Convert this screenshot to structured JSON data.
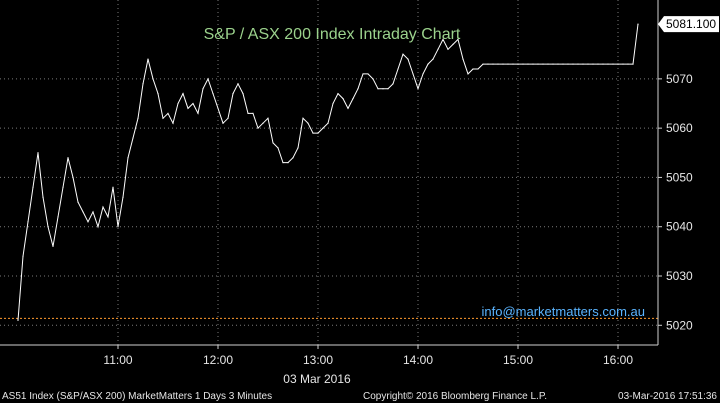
{
  "chart_data": {
    "type": "line",
    "title": "S&P / ASX 200 Index Intraday Chart",
    "date_label": "03 Mar 2016",
    "x_tick_labels": [
      "11:00",
      "12:00",
      "13:00",
      "14:00",
      "15:00",
      "16:00"
    ],
    "y_tick_values": [
      5020,
      5030,
      5040,
      5050,
      5060,
      5070
    ],
    "ylim": [
      5016,
      5086
    ],
    "last_value": 5081.1,
    "last_value_label": "5081.100",
    "reference_line_value": 5021.4,
    "series": [
      {
        "x": [
          "10:00",
          "10:03",
          "10:06",
          "10:09",
          "10:12",
          "10:15",
          "10:18",
          "10:21",
          "10:24",
          "10:27",
          "10:30",
          "10:33",
          "10:36",
          "10:39",
          "10:42",
          "10:45",
          "10:48",
          "10:51",
          "10:54",
          "10:57",
          "11:00",
          "11:03",
          "11:06",
          "11:09",
          "11:12",
          "11:15",
          "11:18",
          "11:21",
          "11:24",
          "11:27",
          "11:30",
          "11:33",
          "11:36",
          "11:39",
          "11:42",
          "11:45",
          "11:48",
          "11:51",
          "11:54",
          "11:57",
          "12:00",
          "12:03",
          "12:06",
          "12:09",
          "12:12",
          "12:15",
          "12:18",
          "12:21",
          "12:24",
          "12:27",
          "12:30",
          "12:33",
          "12:36",
          "12:39",
          "12:42",
          "12:45",
          "12:48",
          "12:51",
          "12:54",
          "12:57",
          "13:00",
          "13:03",
          "13:06",
          "13:09",
          "13:12",
          "13:15",
          "13:18",
          "13:21",
          "13:24",
          "13:27",
          "13:30",
          "13:33",
          "13:36",
          "13:39",
          "13:42",
          "13:45",
          "13:48",
          "13:51",
          "13:54",
          "13:57",
          "14:00",
          "14:03",
          "14:06",
          "14:09",
          "14:12",
          "14:15",
          "14:18",
          "14:21",
          "14:24",
          "14:27",
          "14:30",
          "14:33",
          "14:36",
          "14:39",
          "14:42",
          "14:45",
          "14:48",
          "14:51",
          "14:54",
          "14:57",
          "15:00",
          "15:03",
          "15:06",
          "15:09",
          "15:12",
          "15:15",
          "15:18",
          "15:21",
          "15:24",
          "15:27",
          "15:30",
          "15:33",
          "15:36",
          "15:39",
          "15:42",
          "15:45",
          "15:48",
          "15:51",
          "15:54",
          "15:57",
          "16:00",
          "16:03",
          "16:06",
          "16:09",
          "16:12"
        ],
        "values": [
          5021,
          5034,
          5041,
          5048,
          5055,
          5046,
          5040,
          5036,
          5042,
          5048,
          5054,
          5050,
          5045,
          5043,
          5041,
          5043,
          5040,
          5044,
          5042,
          5048,
          5040,
          5046,
          5054,
          5058,
          5062,
          5069,
          5074,
          5070,
          5067,
          5062,
          5063,
          5061,
          5065,
          5067,
          5064,
          5065,
          5063,
          5068,
          5070,
          5067,
          5064,
          5061,
          5062,
          5067,
          5069,
          5067,
          5063,
          5063,
          5060,
          5061,
          5062,
          5057,
          5056,
          5053,
          5053,
          5054,
          5056,
          5062,
          5061,
          5059,
          5059,
          5060,
          5061,
          5065,
          5067,
          5066,
          5064,
          5066,
          5068,
          5071,
          5071,
          5070,
          5068,
          5068,
          5068,
          5069,
          5072,
          5075,
          5074,
          5071,
          5068,
          5071,
          5073,
          5074,
          5076,
          5078,
          5076,
          5077,
          5078,
          5074,
          5071,
          5072,
          5072,
          5073,
          5073,
          5073,
          5073,
          5073,
          5073,
          5073,
          5073,
          5073,
          5073,
          5073,
          5073,
          5073,
          5073,
          5073,
          5073,
          5073,
          5073,
          5073,
          5073,
          5073,
          5073,
          5073,
          5073,
          5073,
          5073,
          5073,
          5073,
          5073,
          5073,
          5073,
          5081.1
        ]
      }
    ],
    "grid": true
  },
  "annotations": {
    "email": "info@marketmatters.com.au"
  },
  "footer": {
    "left": "AS51 Index (S&P/ASX 200) MarketMatters 1 Days 3 Minutes",
    "center": "Copyright© 2016 Bloomberg Finance L.P.",
    "right": "03-Mar-2016 17:51:36"
  },
  "colors": {
    "background": "#000000",
    "line": "#ffffff",
    "grid": "#7a7a7a",
    "title": "#9bd28c",
    "email": "#5ab4ff",
    "reference": "#ff9a2e",
    "text": "#e6e6e6"
  }
}
